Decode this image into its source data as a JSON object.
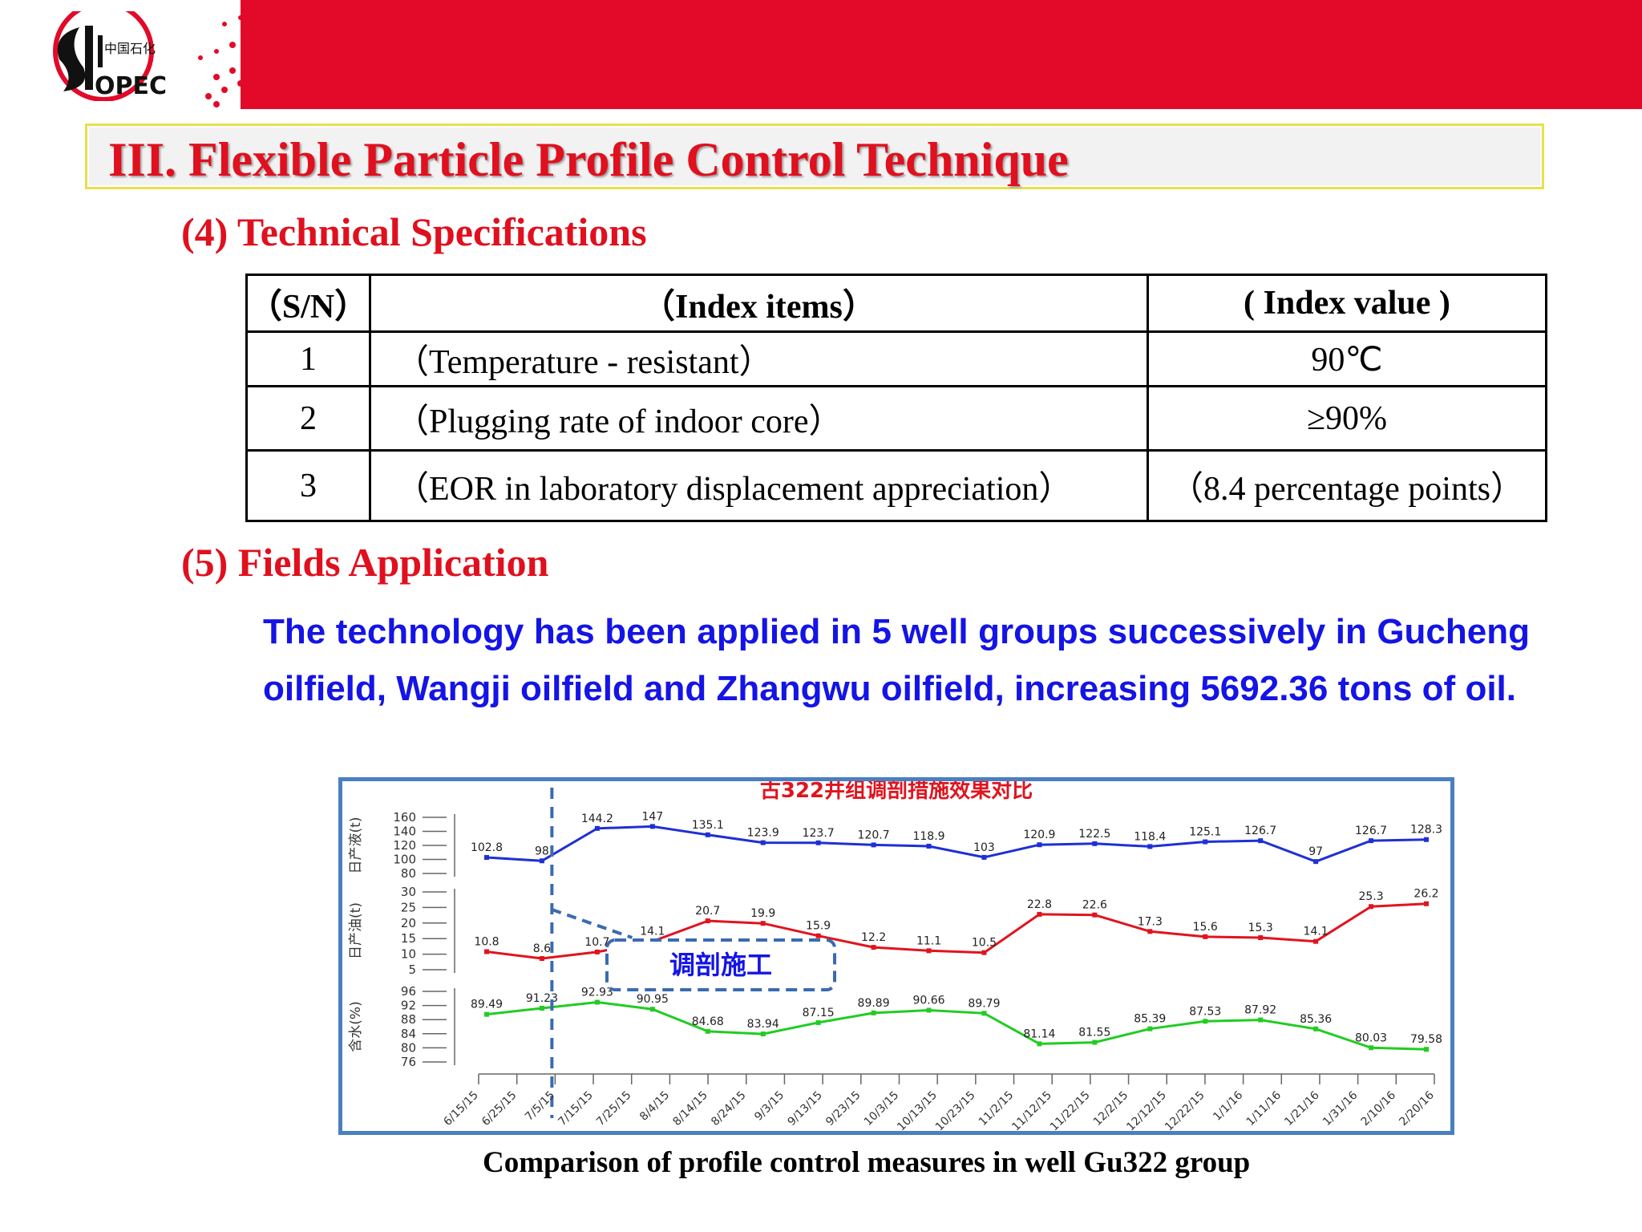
{
  "brand": {
    "logo_text": "SINOPEC",
    "logo_cn": "中国石化"
  },
  "slide_title": "III.  Flexible Particle Profile Control Technique",
  "section4": {
    "heading": "(4) Technical Specifications"
  },
  "spec_table": {
    "headers": [
      "（S/N）",
      "（Index items）",
      "( Index value )"
    ],
    "rows": [
      {
        "sn": "1",
        "item": "（Temperature - resistant）",
        "value": "90℃"
      },
      {
        "sn": "2",
        "item": "（Plugging rate of  indoor core）",
        "value": "≥90%"
      },
      {
        "sn": "3",
        "item": "（EOR in laboratory displacement appreciation）",
        "value": "（8.4 percentage points）"
      }
    ]
  },
  "section5": {
    "heading": "(5) Fields Application",
    "paragraph": "The technology has been applied  in 5 well groups successively in Gucheng oilfield, Wangji oilfield and  Zhangwu oilfield, increasing 5692.36 tons of oil."
  },
  "colors": {
    "accent_red": "#e30a29",
    "heading_red": "#e0101e",
    "body_blue": "#1414e6",
    "frame_blue": "#4a7fc0",
    "liquid_series": "#1f2fd6",
    "oil_series": "#e0141e",
    "water_series": "#22cc22"
  },
  "chart_data": {
    "type": "line",
    "title": "古322井组调剖措施效果对比",
    "x_tick_labels": [
      "6/15/15",
      "6/25/15",
      "7/5/15",
      "7/15/15",
      "7/25/15",
      "8/4/15",
      "8/14/15",
      "8/24/15",
      "9/3/15",
      "9/13/15",
      "9/23/15",
      "10/3/15",
      "10/13/15",
      "10/23/15",
      "11/2/15",
      "11/12/15",
      "11/22/15",
      "12/2/15",
      "12/12/15",
      "12/22/15",
      "1/1/16",
      "1/11/16",
      "1/21/16",
      "1/31/16",
      "2/10/16",
      "2/20/16"
    ],
    "annotation": "调剖施工",
    "panels": [
      {
        "ylabel": "日产液(t)",
        "yticks": [
          "160",
          "140",
          "120",
          "100",
          "80"
        ],
        "ylim": [
          80,
          160
        ],
        "series": [
          {
            "values": [
              102.8,
              98,
              144.2,
              147,
              135.1,
              123.9,
              123.7,
              120.7,
              118.9,
              103,
              120.9,
              122.5,
              118.4,
              125.1,
              126.7,
              97,
              126.7,
              128.3
            ]
          }
        ],
        "point_labels": [
          "102.8",
          "98",
          "144.2",
          "147",
          "135.1",
          "123.9",
          "123.7",
          "120.7",
          "118.9",
          "103",
          "120.9",
          "122.5",
          "118.4",
          "125.1",
          "126.7",
          "97",
          "126.7",
          "128.3"
        ]
      },
      {
        "ylabel": "日产油(t)",
        "yticks": [
          "30",
          "25",
          "20",
          "15",
          "10",
          "5"
        ],
        "ylim": [
          5,
          30
        ],
        "series": [
          {
            "values": [
              10.8,
              8.6,
              10.7,
              14.1,
              20.7,
              19.9,
              15.9,
              12.2,
              11.1,
              10.5,
              22.8,
              22.6,
              17.3,
              15.6,
              15.3,
              14.1,
              25.3,
              26.2
            ]
          }
        ],
        "point_labels": [
          "10.8",
          "8.6",
          "10.7",
          "14.1",
          "20.7",
          "19.9",
          "15.9",
          "12.2",
          "11.1",
          "10.5",
          "22.8",
          "22.6",
          "17.3",
          "15.6",
          "15.3",
          "14.1",
          "25.3",
          "26.2"
        ]
      },
      {
        "ylabel": "含水(%)",
        "yticks": [
          "96",
          "92",
          "88",
          "84",
          "80",
          "76"
        ],
        "ylim": [
          76,
          96
        ],
        "series": [
          {
            "values": [
              89.49,
              91.23,
              92.93,
              90.95,
              84.68,
              83.94,
              87.15,
              89.89,
              90.66,
              89.79,
              81.14,
              81.55,
              85.39,
              87.53,
              87.92,
              85.36,
              80.03,
              79.58
            ]
          }
        ],
        "point_labels": [
          "89.49",
          "91.23",
          "92.93",
          "90.95",
          "84.68",
          "83.94",
          "87.15",
          "89.89",
          "90.66",
          "89.79",
          "81.14",
          "81.55",
          "85.39",
          "87.53",
          "87.92",
          "85.36",
          "80.03",
          "79.58"
        ]
      }
    ]
  },
  "chart_caption": "Comparison of profile control measures in well Gu322 group"
}
